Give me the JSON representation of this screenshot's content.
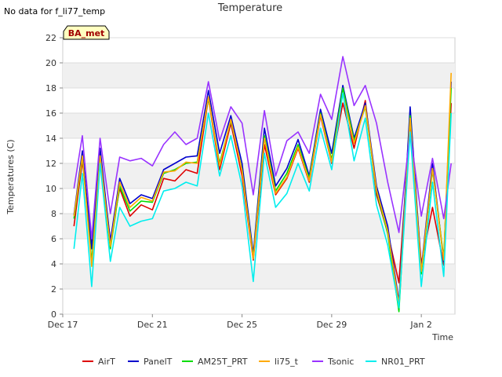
{
  "header": {
    "no_data_note": "No data for f_li77_temp",
    "site_badge": "BA_met"
  },
  "chart_data": {
    "type": "line",
    "title": "Temperature",
    "xlabel": "Time",
    "ylabel": "Temperatures (C)",
    "x_unit": "date (2024-12-17 to 2025-01-03)",
    "xlim": [
      "2024-12-17",
      "2025-01-03T12:00"
    ],
    "ylim": [
      0,
      22
    ],
    "x_ticks": [
      {
        "date": "2024-12-17",
        "label": "Dec 17"
      },
      {
        "date": "2024-12-21",
        "label": "Dec 21"
      },
      {
        "date": "2024-12-25",
        "label": "Dec 25"
      },
      {
        "date": "2024-12-29",
        "label": "Dec 29"
      },
      {
        "date": "2025-01-02",
        "label": "Jan 2"
      }
    ],
    "y_ticks": [
      0,
      2,
      4,
      6,
      8,
      10,
      12,
      14,
      16,
      18,
      20,
      22
    ],
    "grid": "horizontal bands",
    "legend_position": "bottom",
    "x": [
      "2024-12-17T12:00",
      "2024-12-17T21:00",
      "2024-12-18T07:00",
      "2024-12-18T16:00",
      "2024-12-19T03:00",
      "2024-12-19T13:00",
      "2024-12-20T00:00",
      "2024-12-20T12:00",
      "2024-12-21T00:00",
      "2024-12-21T12:00",
      "2024-12-22T00:00",
      "2024-12-22T12:00",
      "2024-12-23T00:00",
      "2024-12-23T12:00",
      "2024-12-24T00:00",
      "2024-12-24T12:00",
      "2024-12-25T00:00",
      "2024-12-25T12:00",
      "2024-12-26T00:00",
      "2024-12-26T12:00",
      "2024-12-27T00:00",
      "2024-12-27T12:00",
      "2024-12-28T00:00",
      "2024-12-28T12:00",
      "2024-12-29T00:00",
      "2024-12-29T12:00",
      "2024-12-30T00:00",
      "2024-12-30T12:00",
      "2024-12-31T00:00",
      "2024-12-31T12:00",
      "2025-01-01T00:00",
      "2025-01-01T12:00",
      "2025-01-02T00:00",
      "2025-01-02T12:00",
      "2025-01-03T00:00",
      "2025-01-03T08:00"
    ],
    "series": [
      {
        "name": "AirT",
        "color": "#dd0000",
        "values": [
          7.0,
          12.2,
          5.5,
          12.7,
          5.8,
          10.0,
          7.8,
          8.7,
          8.3,
          10.8,
          10.6,
          11.5,
          11.2,
          17.2,
          11.5,
          15.2,
          11.0,
          4.3,
          13.5,
          9.5,
          10.8,
          13.2,
          10.5,
          15.8,
          12.0,
          16.8,
          13.2,
          17.0,
          9.5,
          6.5,
          2.5,
          15.2,
          4.0,
          8.5,
          3.9,
          16.8
        ]
      },
      {
        "name": "PanelT",
        "color": "#0000cc",
        "values": [
          7.9,
          13.0,
          5.2,
          13.2,
          5.8,
          10.8,
          8.8,
          9.5,
          9.2,
          11.5,
          12.0,
          12.5,
          12.6,
          17.8,
          12.8,
          15.8,
          12.0,
          4.8,
          14.8,
          10.2,
          11.6,
          13.9,
          11.0,
          16.3,
          12.8,
          18.2,
          14.0,
          16.8,
          10.2,
          7.0,
          1.0,
          16.5,
          3.6,
          12.0,
          4.2,
          18.5
        ]
      },
      {
        "name": "AM25T_PRT",
        "color": "#00dd00",
        "values": [
          7.6,
          12.5,
          4.2,
          12.5,
          5.2,
          10.2,
          8.2,
          9.0,
          8.9,
          11.2,
          11.5,
          12.0,
          12.1,
          17.2,
          12.0,
          15.4,
          11.5,
          4.5,
          14.2,
          9.8,
          11.2,
          13.5,
          10.8,
          16.0,
          12.3,
          18.0,
          13.8,
          16.5,
          9.8,
          6.4,
          0.2,
          15.8,
          3.2,
          11.5,
          4.5,
          18.0
        ]
      },
      {
        "name": "li75_t",
        "color": "#ffaa00",
        "values": [
          7.8,
          12.6,
          3.8,
          12.6,
          5.4,
          10.5,
          8.5,
          9.3,
          9.0,
          11.3,
          11.4,
          12.1,
          12.0,
          17.3,
          11.8,
          15.5,
          11.4,
          4.4,
          14.0,
          9.6,
          10.9,
          13.3,
          10.6,
          15.9,
          12.1,
          17.6,
          13.6,
          16.6,
          9.9,
          6.6,
          0.8,
          15.6,
          3.4,
          11.6,
          4.3,
          19.2
        ]
      },
      {
        "name": "Tsonic",
        "color": "#9933ff",
        "values": [
          10.0,
          14.2,
          6.0,
          14.0,
          8.0,
          12.5,
          12.2,
          12.4,
          11.8,
          13.5,
          14.5,
          13.5,
          14.0,
          18.5,
          13.8,
          16.5,
          15.2,
          9.5,
          16.2,
          11.0,
          13.8,
          14.5,
          12.8,
          17.5,
          15.5,
          20.5,
          16.6,
          18.2,
          15.2,
          10.5,
          6.5,
          14.5,
          7.8,
          12.4,
          7.6,
          12.0
        ]
      },
      {
        "name": "NR01_PRT",
        "color": "#00eeee",
        "values": [
          5.2,
          11.2,
          2.2,
          12.0,
          4.2,
          8.5,
          7.0,
          7.4,
          7.6,
          9.8,
          10.0,
          10.5,
          10.2,
          16.0,
          11.0,
          14.2,
          10.2,
          2.6,
          12.8,
          8.5,
          9.6,
          12.0,
          9.8,
          14.8,
          11.5,
          17.6,
          12.2,
          15.6,
          8.7,
          5.5,
          0.5,
          14.5,
          2.2,
          10.5,
          3.0,
          16.0
        ]
      }
    ]
  }
}
